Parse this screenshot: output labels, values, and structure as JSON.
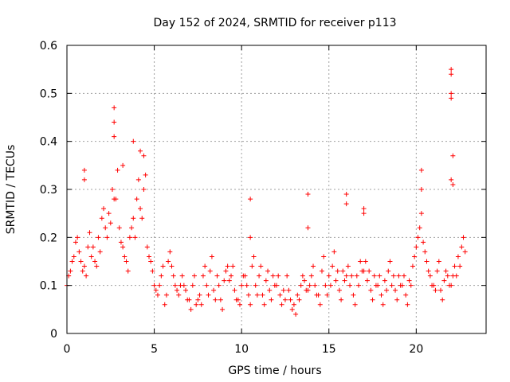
{
  "chart_data": {
    "type": "scatter",
    "title": "Day 152 of 2024, SRMTID for receiver p113",
    "xlabel": "GPS time / hours",
    "ylabel": "SRMTID / TECUs",
    "xlim": [
      0,
      24
    ],
    "ylim": [
      0,
      0.6
    ],
    "xticks": [
      0,
      5,
      10,
      15,
      20
    ],
    "xtick_labels": [
      "0",
      "5",
      "10",
      "15",
      "20"
    ],
    "yticks": [
      0,
      0.1,
      0.2,
      0.3,
      0.4,
      0.5,
      0.6
    ],
    "ytick_labels": [
      "0",
      "0.1",
      "0.2",
      "0.3",
      "0.4",
      "0.5",
      "0.6"
    ],
    "grid": true,
    "marker": "+",
    "color": "#ff0000",
    "series": [
      {
        "name": "SRMTID",
        "x": [
          0.0,
          0.2,
          0.4,
          0.6,
          0.8,
          1.0,
          1.2,
          1.4,
          1.6,
          1.8,
          2.0,
          2.2,
          2.4,
          2.6,
          2.8,
          3.0,
          3.2,
          3.4,
          3.6,
          3.8,
          4.0,
          4.2,
          4.4,
          4.6,
          4.8,
          5.0,
          5.2,
          5.4,
          5.6,
          5.8,
          6.0,
          6.2,
          6.4,
          6.6,
          6.8,
          7.0,
          7.2,
          7.4,
          7.6,
          7.8,
          8.0,
          8.2,
          8.4,
          8.6,
          8.8,
          9.0,
          9.2,
          9.4,
          9.6,
          9.8,
          10.0,
          10.2,
          10.4,
          10.6,
          10.8,
          11.0,
          11.2,
          11.4,
          11.6,
          11.8,
          12.0,
          12.2,
          12.4,
          12.6,
          12.8,
          13.0,
          13.2,
          13.4,
          13.6,
          13.8,
          14.0,
          14.2,
          14.4,
          14.6,
          14.8,
          15.0,
          15.2,
          15.4,
          15.6,
          15.8,
          16.0,
          16.2,
          16.4,
          16.6,
          16.8,
          17.0,
          17.2,
          17.4,
          17.6,
          17.8,
          18.0,
          18.2,
          18.4,
          18.6,
          18.8,
          19.0,
          19.2,
          19.4,
          19.6,
          19.8,
          20.0,
          20.2,
          20.4,
          20.6,
          20.8,
          21.0,
          21.2,
          21.4,
          21.6,
          21.8,
          22.0,
          22.2,
          22.4,
          22.6,
          22.8,
          0.1,
          0.3,
          0.5,
          0.7,
          0.9,
          1.1,
          1.3,
          1.5,
          1.7,
          1.9,
          2.1,
          2.3,
          2.5,
          2.7,
          2.9,
          3.1,
          3.3,
          3.5,
          3.7,
          3.9,
          4.1,
          4.3,
          4.5,
          4.7,
          4.9,
          5.1,
          5.3,
          5.5,
          5.7,
          5.9,
          6.1,
          6.3,
          6.5,
          6.7,
          6.9,
          7.1,
          7.3,
          7.5,
          7.7,
          7.9,
          8.1,
          8.3,
          8.5,
          8.7,
          8.9,
          9.1,
          9.3,
          9.5,
          9.7,
          9.9,
          10.1,
          10.3,
          10.5,
          10.7,
          10.9,
          11.1,
          11.3,
          11.5,
          11.7,
          11.9,
          12.1,
          12.3,
          12.5,
          12.7,
          12.9,
          13.1,
          13.3,
          13.5,
          13.7,
          13.9,
          14.1,
          14.3,
          14.5,
          14.7,
          14.9,
          15.1,
          15.3,
          15.5,
          15.7,
          15.9,
          16.1,
          16.3,
          16.5,
          16.7,
          16.9,
          17.1,
          17.3,
          17.5,
          17.7,
          17.9,
          18.1,
          18.3,
          18.5,
          18.7,
          18.9,
          19.1,
          19.3,
          19.5,
          19.7,
          19.9,
          20.1,
          20.3,
          20.5,
          20.7,
          20.9,
          21.1,
          21.3,
          21.5,
          21.7,
          21.9,
          22.1,
          22.3,
          22.5,
          22.7,
          1.0,
          1.0,
          2.7,
          2.7,
          2.7,
          3.2,
          3.8,
          4.2,
          4.4,
          10.5,
          10.5,
          13.8,
          13.8,
          16.0,
          16.0,
          17.0,
          17.0,
          20.3,
          20.3,
          22.0,
          22.0,
          22.0,
          22.0,
          22.0,
          22.1,
          22.1
        ],
        "y": [
          0.1,
          0.13,
          0.16,
          0.2,
          0.15,
          0.14,
          0.18,
          0.16,
          0.15,
          0.2,
          0.24,
          0.22,
          0.25,
          0.3,
          0.28,
          0.22,
          0.18,
          0.15,
          0.2,
          0.24,
          0.28,
          0.26,
          0.3,
          0.18,
          0.15,
          0.1,
          0.08,
          0.12,
          0.06,
          0.15,
          0.14,
          0.1,
          0.08,
          0.12,
          0.09,
          0.07,
          0.1,
          0.06,
          0.08,
          0.12,
          0.1,
          0.13,
          0.09,
          0.12,
          0.07,
          0.11,
          0.14,
          0.12,
          0.09,
          0.07,
          0.1,
          0.12,
          0.08,
          0.14,
          0.1,
          0.12,
          0.08,
          0.11,
          0.09,
          0.12,
          0.1,
          0.08,
          0.09,
          0.12,
          0.07,
          0.06,
          0.08,
          0.1,
          0.11,
          0.09,
          0.12,
          0.1,
          0.08,
          0.13,
          0.1,
          0.12,
          0.14,
          0.11,
          0.09,
          0.13,
          0.12,
          0.1,
          0.08,
          0.12,
          0.15,
          0.13,
          0.11,
          0.09,
          0.12,
          0.1,
          0.08,
          0.11,
          0.13,
          0.1,
          0.09,
          0.12,
          0.1,
          0.08,
          0.11,
          0.14,
          0.18,
          0.22,
          0.19,
          0.15,
          0.12,
          0.1,
          0.13,
          0.09,
          0.11,
          0.12,
          0.1,
          0.14,
          0.16,
          0.18,
          0.17,
          0.12,
          0.15,
          0.19,
          0.17,
          0.13,
          0.12,
          0.21,
          0.18,
          0.14,
          0.17,
          0.26,
          0.2,
          0.23,
          0.28,
          0.34,
          0.19,
          0.16,
          0.13,
          0.22,
          0.2,
          0.32,
          0.24,
          0.33,
          0.16,
          0.13,
          0.09,
          0.1,
          0.14,
          0.08,
          0.17,
          0.12,
          0.09,
          0.1,
          0.1,
          0.07,
          0.05,
          0.12,
          0.07,
          0.06,
          0.14,
          0.08,
          0.16,
          0.07,
          0.1,
          0.05,
          0.13,
          0.11,
          0.14,
          0.07,
          0.06,
          0.12,
          0.1,
          0.06,
          0.16,
          0.08,
          0.14,
          0.06,
          0.13,
          0.07,
          0.1,
          0.12,
          0.06,
          0.07,
          0.09,
          0.05,
          0.04,
          0.07,
          0.12,
          0.09,
          0.1,
          0.14,
          0.08,
          0.06,
          0.16,
          0.08,
          0.1,
          0.17,
          0.13,
          0.07,
          0.11,
          0.14,
          0.12,
          0.06,
          0.1,
          0.13,
          0.15,
          0.13,
          0.07,
          0.1,
          0.12,
          0.06,
          0.09,
          0.15,
          0.12,
          0.07,
          0.1,
          0.12,
          0.06,
          0.1,
          0.16,
          0.2,
          0.25,
          0.17,
          0.13,
          0.1,
          0.09,
          0.15,
          0.07,
          0.13,
          0.1,
          0.12,
          0.12,
          0.14,
          0.2,
          0.34,
          0.32,
          0.44,
          0.41,
          0.47,
          0.35,
          0.4,
          0.38,
          0.37,
          0.28,
          0.2,
          0.22,
          0.29,
          0.29,
          0.27,
          0.25,
          0.26,
          0.3,
          0.34,
          0.54,
          0.55,
          0.5,
          0.49,
          0.32,
          0.37,
          0.31
        ]
      }
    ]
  }
}
